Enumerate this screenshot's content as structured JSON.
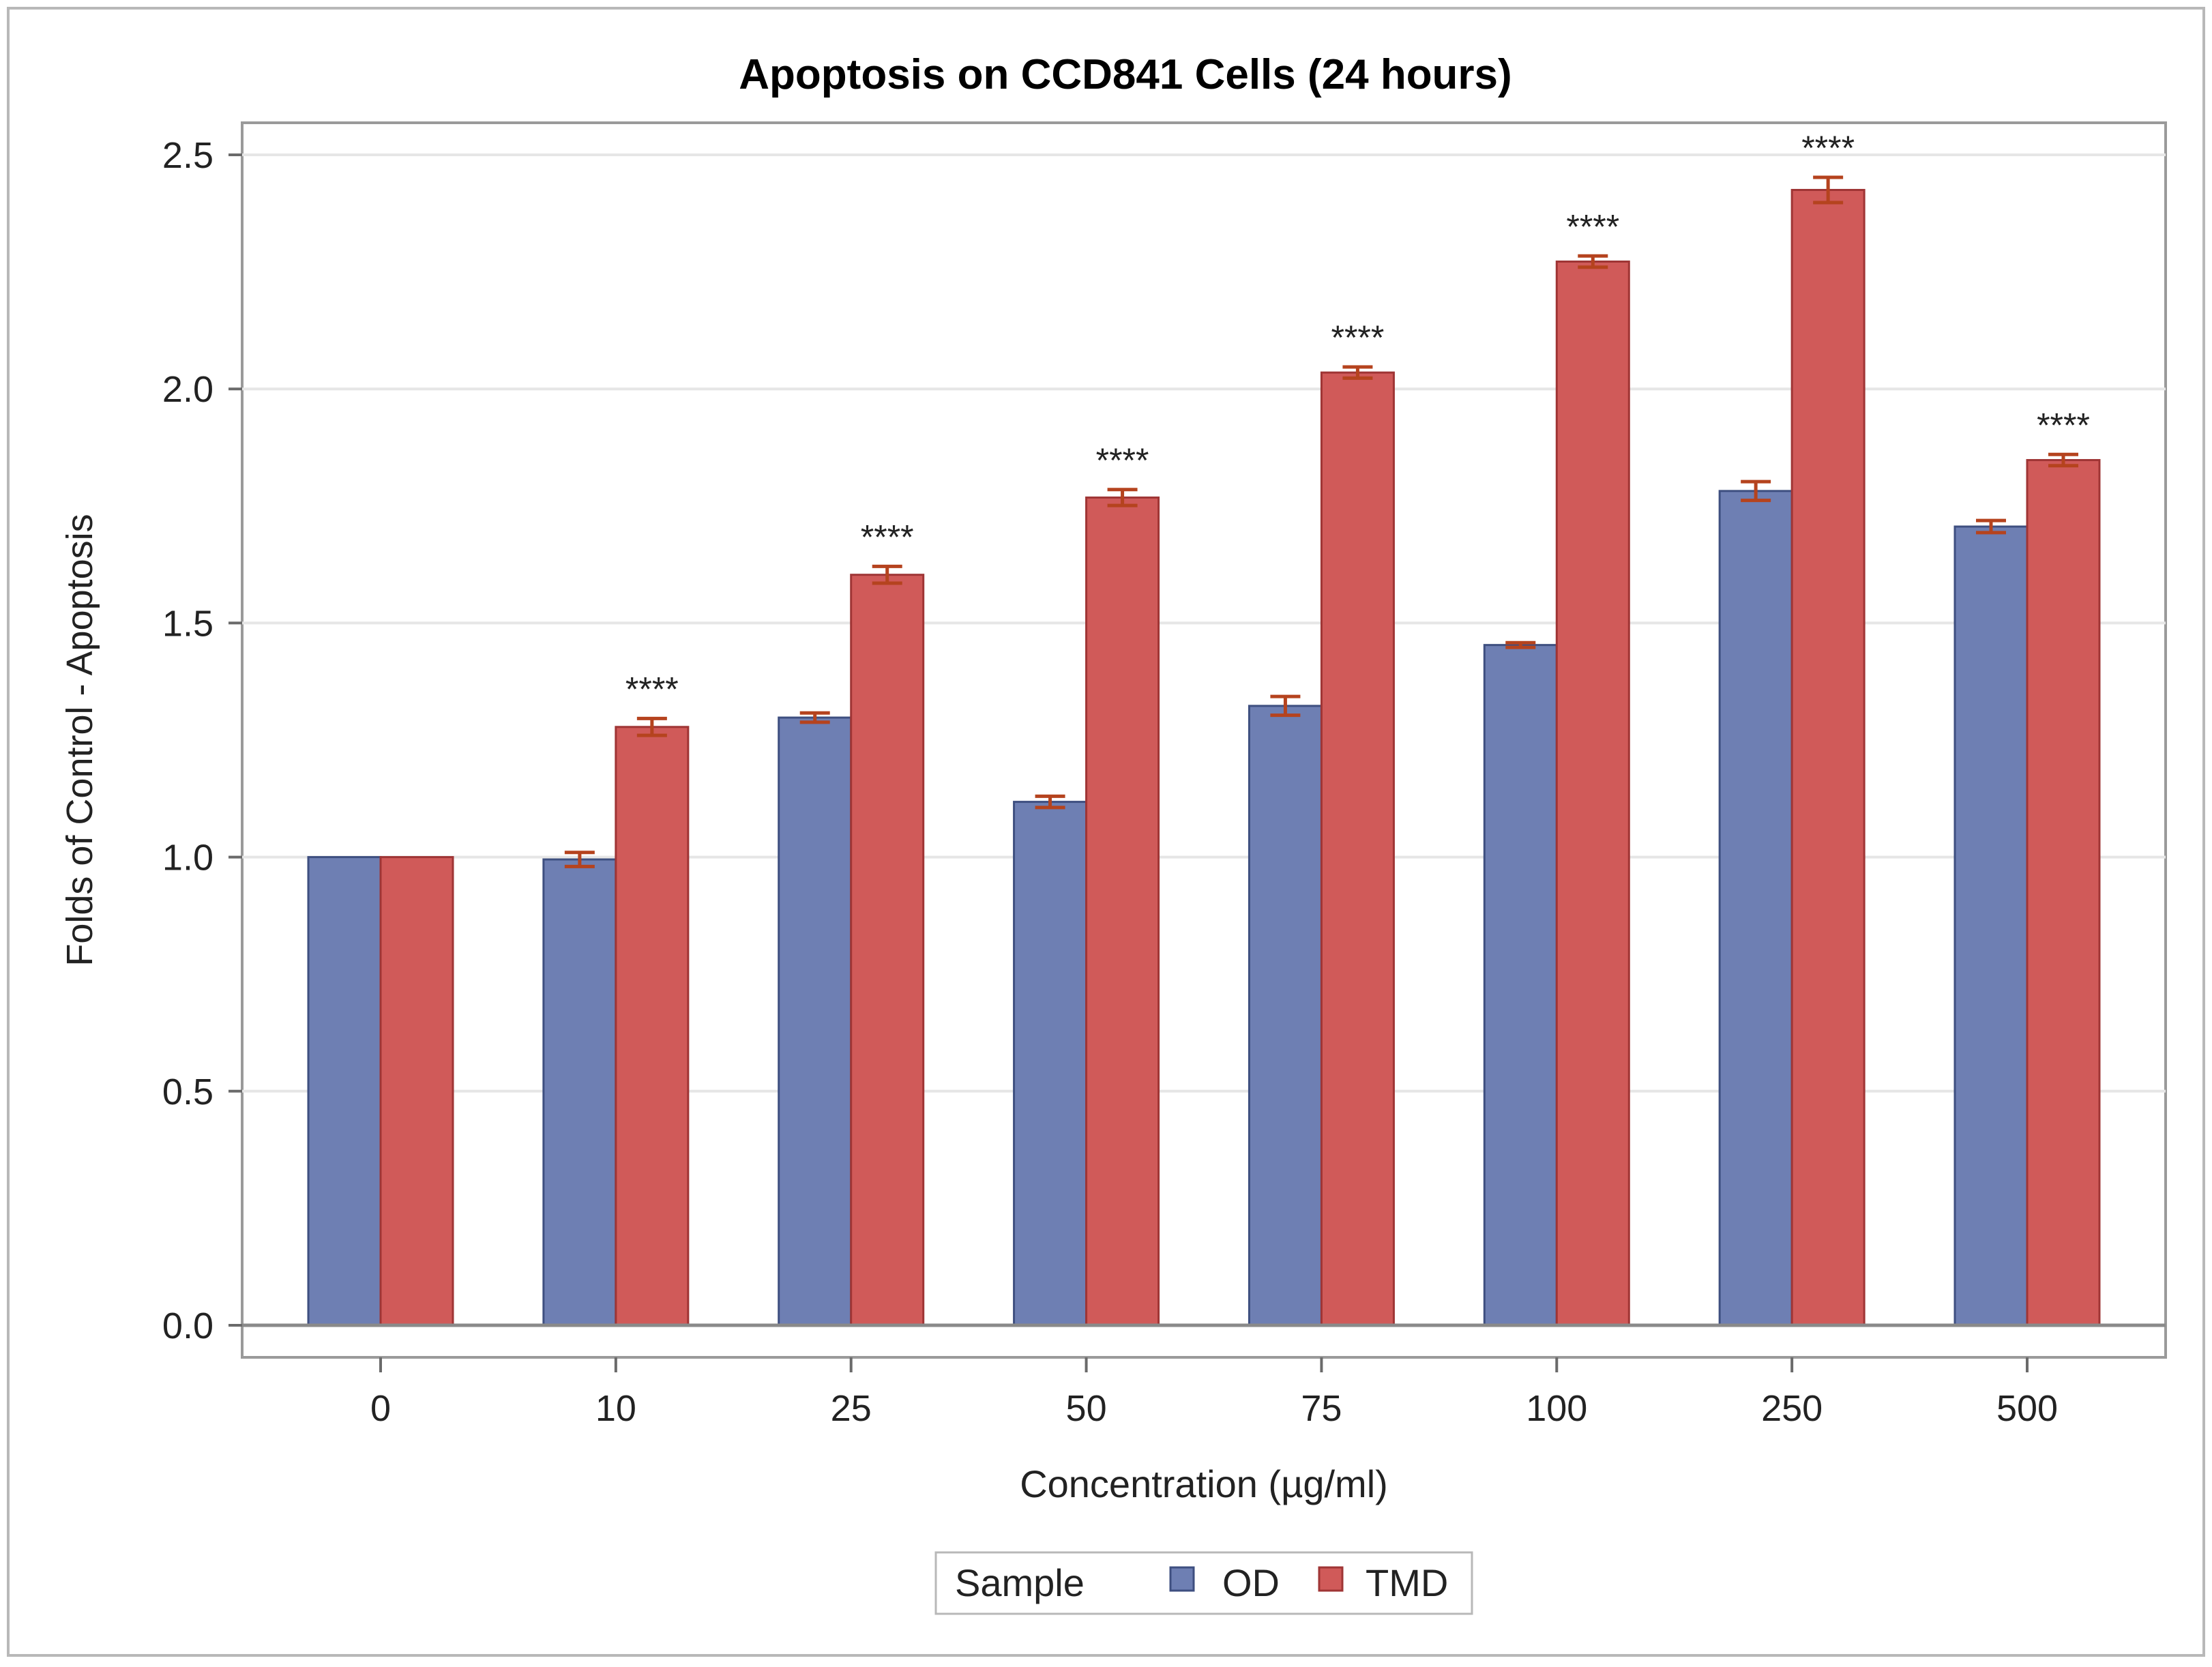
{
  "chart_data": {
    "type": "bar",
    "title": "Apoptosis on CCD841 Cells (24 hours)",
    "xlabel": "Concentration (µg/ml)",
    "ylabel": "Folds of Control - Apoptosis",
    "ylim": [
      0,
      2.5
    ],
    "yticks": [
      "0.0",
      "0.5",
      "1.0",
      "1.5",
      "2.0",
      "2.5"
    ],
    "grid": true,
    "categories": [
      "0",
      "10",
      "25",
      "50",
      "75",
      "100",
      "250",
      "500"
    ],
    "series": [
      {
        "name": "OD",
        "color": "#6e7fb3",
        "values": [
          1.0,
          0.995,
          1.298,
          1.118,
          1.323,
          1.453,
          1.782,
          1.706
        ],
        "errors": [
          0,
          0.015,
          0.01,
          0.012,
          0.02,
          0.005,
          0.02,
          0.013
        ]
      },
      {
        "name": "TMD",
        "color": "#d05a59",
        "values": [
          1.0,
          1.278,
          1.603,
          1.768,
          2.035,
          2.272,
          2.425,
          1.848
        ],
        "errors": [
          0,
          0.018,
          0.018,
          0.017,
          0.012,
          0.012,
          0.027,
          0.012
        ]
      }
    ],
    "annotations": [
      "",
      "****",
      "****",
      "****",
      "****",
      "****",
      "****",
      "****"
    ],
    "legend": {
      "title": "Sample",
      "position": "bottom-center",
      "items": [
        "OD",
        "TMD"
      ]
    },
    "error_bar_color": "#b5431e"
  }
}
